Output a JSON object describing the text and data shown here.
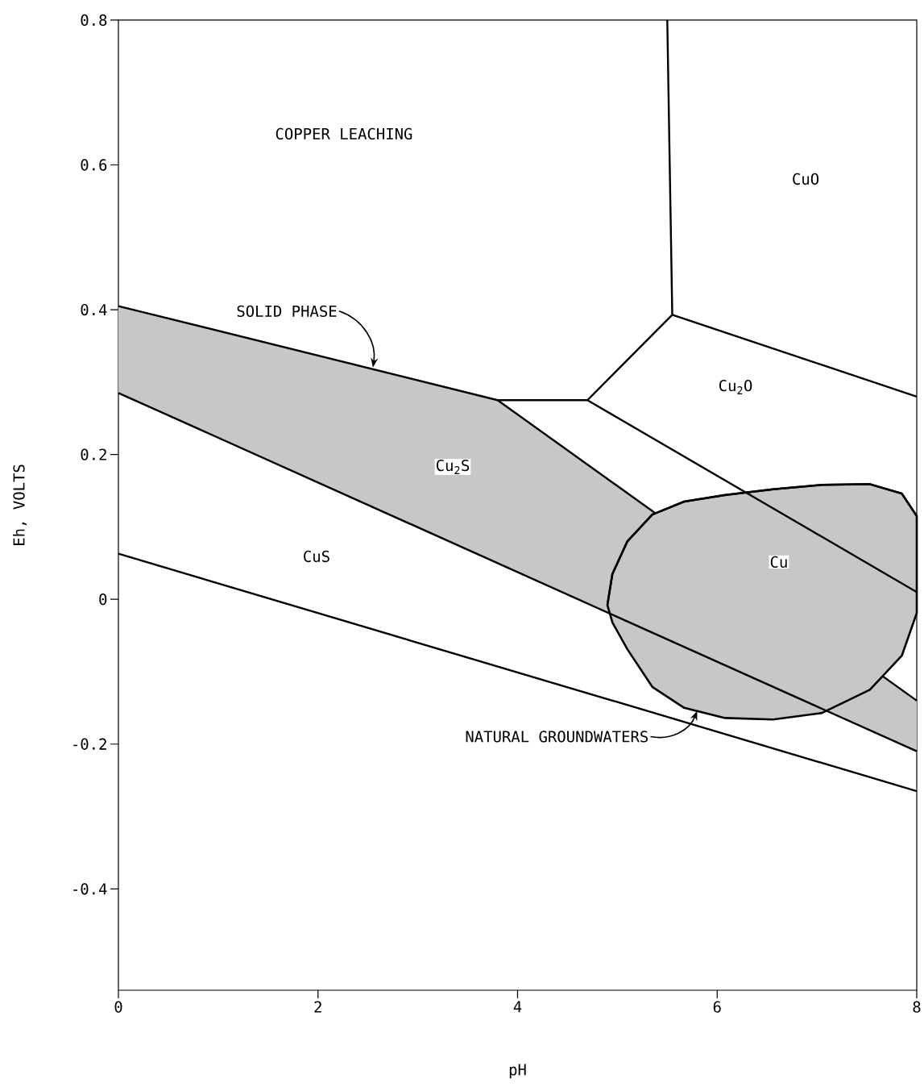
{
  "chart_data": {
    "type": "line",
    "xlabel": "pH",
    "ylabel": "Eh, VOLTS",
    "xlim": [
      0,
      8
    ],
    "ylim": [
      -0.54,
      0.8
    ],
    "xticks": [
      0,
      2,
      4,
      6,
      8
    ],
    "yticks": [
      -0.4,
      -0.2,
      0,
      0.2,
      0.4,
      0.6,
      0.8
    ],
    "series": [
      {
        "color": "#000000",
        "x": [
          0,
          3.8,
          8
        ],
        "values": [
          0.405,
          0.275,
          -0.14
        ],
        "lower": [
          0.285,
          0.05,
          -0.21
        ],
        "upper": [
          0.405,
          0.275,
          -0.14
        ]
      },
      {
        "color": "#000000",
        "x": [
          4.9,
          4.95,
          5.1,
          5.35,
          5.67,
          6.08,
          6.56,
          7.05,
          7.53,
          7.85,
          8.0
        ],
        "values": [
          -0.008,
          0.035,
          0.08,
          0.117,
          0.135,
          0.144,
          0.152,
          0.158,
          0.159,
          0.146,
          0.115
        ],
        "lower": [
          -0.008,
          -0.032,
          -0.069,
          -0.121,
          -0.15,
          -0.164,
          -0.166,
          -0.157,
          -0.125,
          -0.078,
          -0.019
        ],
        "upper": [
          -0.008,
          0.035,
          0.08,
          0.117,
          0.135,
          0.144,
          0.152,
          0.158,
          0.159,
          0.146,
          0.115
        ]
      },
      {
        "color": "#000000",
        "x": [
          0,
          8
        ],
        "values": [
          0.285,
          -0.21
        ]
      },
      {
        "color": "#000000",
        "x": [
          3.8,
          4.7
        ],
        "values": [
          0.275,
          0.275
        ]
      },
      {
        "color": "#000000",
        "x": [
          4.7,
          5.55
        ],
        "values": [
          0.275,
          0.393
        ]
      },
      {
        "color": "#000000",
        "x": [
          5.5,
          5.55
        ],
        "values": [
          0.8,
          0.393
        ]
      },
      {
        "color": "#000000",
        "x": [
          5.55,
          8
        ],
        "values": [
          0.393,
          0.28
        ]
      },
      {
        "color": "#000000",
        "x": [
          4.7,
          8
        ],
        "values": [
          0.275,
          0.01
        ]
      },
      {
        "color": "#000000",
        "x": [
          0,
          8
        ],
        "values": [
          0.063,
          -0.265
        ]
      }
    ],
    "annotations": [
      "COPPER LEACHING",
      "CuO",
      "Cu$_{2}$O",
      "Cu$_{2}$S",
      "CuS",
      "Cu",
      {
        "text": "SOLID PHASE",
        "x": 2.55,
        "y": 0.32
      },
      {
        "text": "NATURAL GROUNDWATERS",
        "x": 5.8,
        "y": -0.154
      }
    ]
  }
}
